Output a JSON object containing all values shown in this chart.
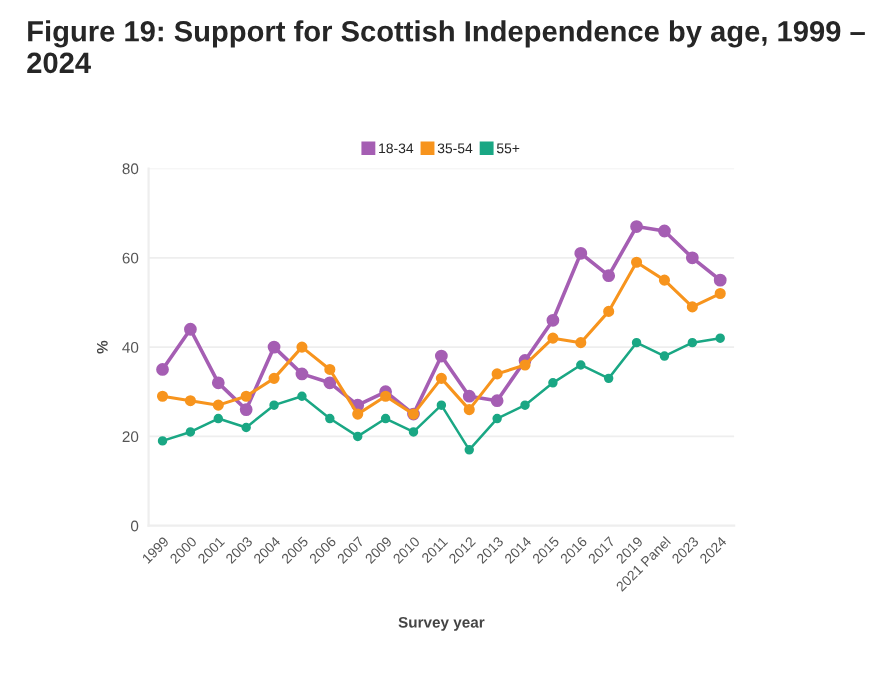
{
  "chart_data": {
    "type": "line",
    "title": "Figure 19: Support for Scottish Independence by age, 1999 – 2024",
    "xlabel": "Survey year",
    "ylabel": "%",
    "categories": [
      "1999",
      "2000",
      "2001",
      "2003",
      "2004",
      "2005",
      "2006",
      "2007",
      "2009",
      "2010",
      "2011",
      "2012",
      "2013",
      "2014",
      "2015",
      "2016",
      "2017",
      "2019",
      "2021 Panel",
      "2023",
      "2024"
    ],
    "series": [
      {
        "name": "18-34",
        "color": "#a55eb3",
        "values": [
          35,
          44,
          32,
          26,
          40,
          34,
          32,
          27,
          30,
          25,
          38,
          29,
          28,
          37,
          46,
          61,
          56,
          67,
          66,
          60,
          55
        ]
      },
      {
        "name": "35-54",
        "color": "#f7941d",
        "values": [
          29,
          28,
          27,
          29,
          33,
          40,
          35,
          25,
          29,
          25,
          33,
          26,
          34,
          36,
          42,
          41,
          48,
          59,
          55,
          49,
          52
        ]
      },
      {
        "name": "55+",
        "color": "#1aa784",
        "values": [
          19,
          21,
          24,
          22,
          27,
          29,
          24,
          20,
          24,
          21,
          27,
          17,
          24,
          27,
          32,
          36,
          33,
          41,
          38,
          41,
          42
        ]
      }
    ],
    "ylim": [
      0,
      80
    ],
    "yticks": [
      0,
      20,
      40,
      60,
      80
    ],
    "grid": "y",
    "legend": "top",
    "marker": "circle",
    "line_style": "solid"
  }
}
